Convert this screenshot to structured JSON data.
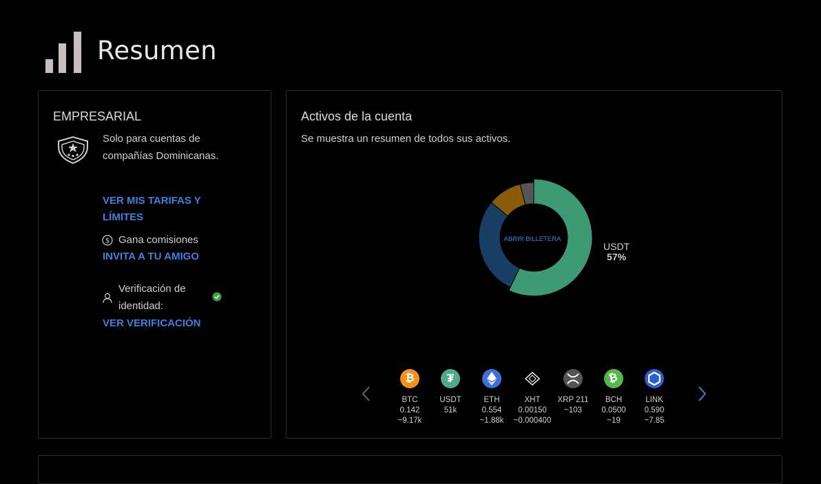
{
  "page": {
    "title": "Resumen"
  },
  "account": {
    "type": "EMPRESARIAL",
    "description": "Solo para cuentas de compañías Dominicanas.",
    "tariffs_link": "VER MIS TARIFAS Y LÍMITES",
    "earn_label": "Gana comisiones",
    "invite_link": "INVITA A TU AMIGO",
    "verification_label": "Verificación de identidad:",
    "verification_link": "VER VERIFICACIÓN"
  },
  "assets": {
    "title": "Activos de la cuenta",
    "subtitle": "Se muestra un resumen de todos sus activos.",
    "center_button": "ABRIR BILLETERA",
    "legend": {
      "name": "USDT",
      "percent": "57%"
    },
    "coins": [
      {
        "symbol": "BTC",
        "amount": "0.142",
        "value": "~9.17k",
        "color": "#f2921b",
        "icon": "bitcoin-icon"
      },
      {
        "symbol": "USDT",
        "amount": "51k",
        "value": "",
        "color": "#4fa98a",
        "icon": "tether-icon"
      },
      {
        "symbol": "ETH",
        "amount": "0.554",
        "value": "~1.88k",
        "color": "#3d6fd6",
        "icon": "ethereum-icon"
      },
      {
        "symbol": "XHT",
        "amount": "0.00150",
        "value": "~0.000400",
        "color": "#000000",
        "icon": "hollaex-icon"
      },
      {
        "symbol": "XRP 211",
        "amount": "~103",
        "value": "",
        "color": "#555555",
        "icon": "ripple-icon"
      },
      {
        "symbol": "BCH",
        "amount": "0.0500",
        "value": "~19",
        "color": "#56b84c",
        "icon": "bitcoin-cash-icon"
      },
      {
        "symbol": "LINK",
        "amount": "0.590",
        "value": "~7.85",
        "color": "#2d5fd1",
        "icon": "chainlink-icon"
      }
    ]
  },
  "chart_data": {
    "type": "pie",
    "categories": [
      "USDT",
      "Other (dark blue)",
      "Other (gold)",
      "Other (gray)"
    ],
    "values": [
      57,
      29,
      10,
      4
    ],
    "colors": [
      "#3e9a74",
      "#183e64",
      "#8a5c08",
      "#555555"
    ]
  }
}
